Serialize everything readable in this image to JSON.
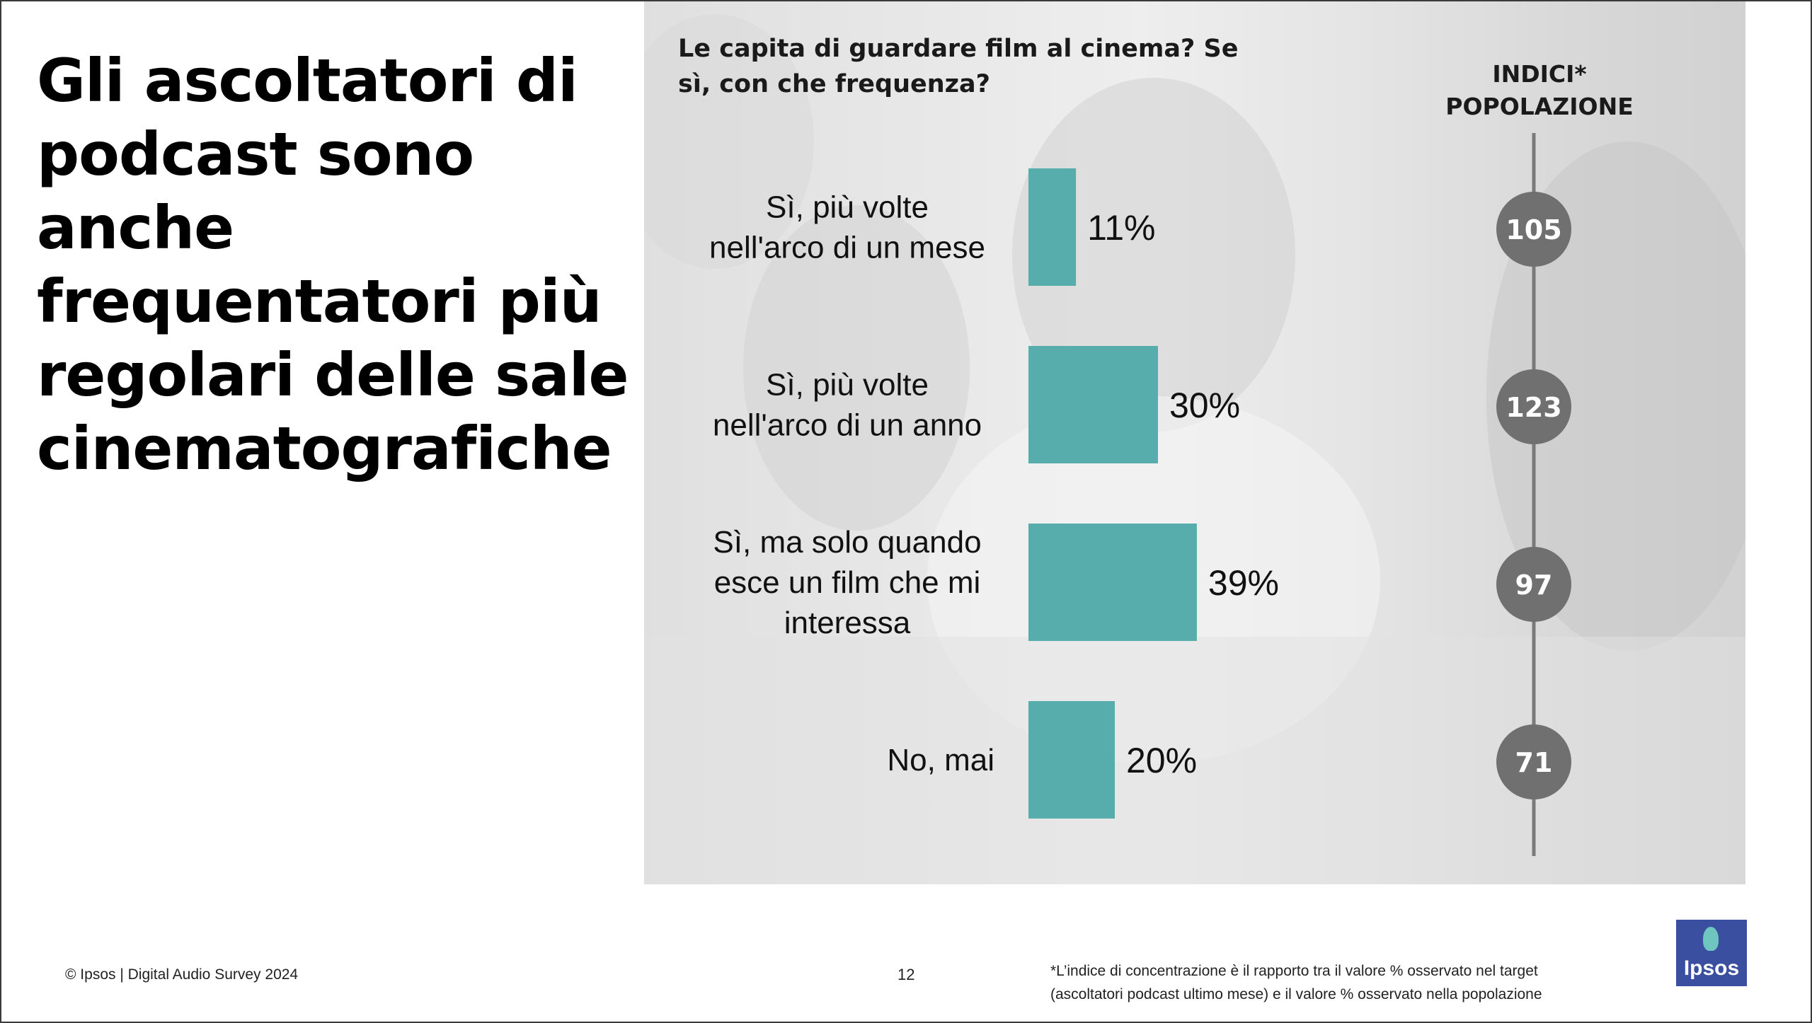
{
  "headline": "Gli ascoltatori di podcast sono anche frequentatori più regolari delle sale cinematografiche",
  "question": "Le capita di guardare film al cinema? Se sì, con che frequenza?",
  "index_header": "INDICI* POPOLAZIONE",
  "colors": {
    "bar": "#56adab",
    "index_circle": "#707070",
    "index_line": "#7a7a7a",
    "logo_bg": "#3a4fa0"
  },
  "chart_data": {
    "type": "bar",
    "orientation": "horizontal",
    "categories": [
      [
        "Sì, più volte",
        "nell'arco di un mese"
      ],
      [
        "Sì, più volte",
        "nell'arco di un anno"
      ],
      [
        "Sì, ma solo quando",
        "esce un film che mi",
        "interessa"
      ],
      [
        "No, mai"
      ]
    ],
    "values": [
      11,
      30,
      39,
      20
    ],
    "value_labels": [
      "11%",
      "30%",
      "39%",
      "20%"
    ],
    "unit": "%",
    "population_index": [
      105,
      123,
      97,
      71
    ]
  },
  "footer": {
    "copyright": "© Ipsos | Digital Audio Survey 2024",
    "page_number": "12",
    "footnote_line1": "*L’indice di concentrazione è il rapporto tra il valore % osservato nel target",
    "footnote_line2": "(ascoltatori podcast ultimo mese) e il valore % osservato nella popolazione"
  },
  "logo": {
    "text": "Ipsos"
  }
}
